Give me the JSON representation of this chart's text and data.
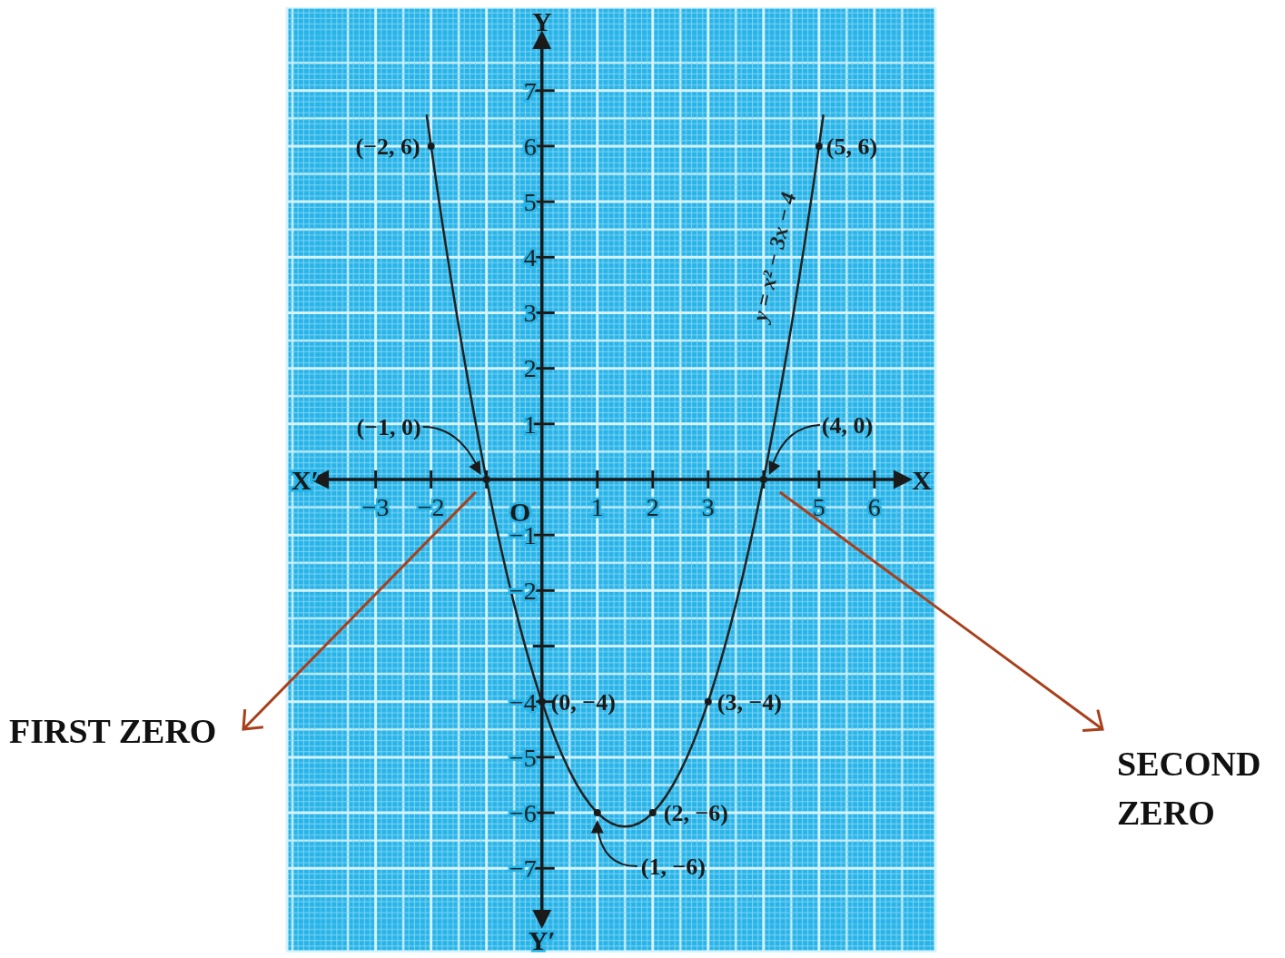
{
  "chart_data": {
    "type": "line",
    "xlabel": "X",
    "ylabel": "Y",
    "xlim": [
      -4.6,
      7.1
    ],
    "ylim": [
      -8.5,
      8.5
    ],
    "xticks": [
      -3,
      -2,
      {
        "value": -1,
        "label": null
      },
      1,
      2,
      3,
      {
        "value": 4,
        "label": null
      },
      5,
      6
    ],
    "yticks": [
      -7,
      -6,
      -5,
      -4,
      {
        "value": -3,
        "label": null
      },
      -2,
      -1,
      1,
      2,
      3,
      4,
      5,
      6,
      7
    ],
    "grid": true,
    "series": [
      {
        "name": "y = x² − 3x − 4",
        "color": "#222222",
        "marker": "none",
        "x": [
          -2.08,
          -2,
          -1.5,
          -1,
          -0.5,
          0,
          0.5,
          1,
          1.5,
          2,
          2.5,
          3,
          3.5,
          4,
          4.5,
          5,
          5.08
        ],
        "values": [
          6.57,
          6,
          2.75,
          0,
          -2.25,
          -4,
          -5.25,
          -6,
          -6.25,
          -6,
          -5.25,
          -4,
          -2.25,
          0,
          2.75,
          6,
          6.57
        ]
      },
      {
        "type": "scatter",
        "color": "#1a1a1a",
        "marker": "circle",
        "x": [
          -2,
          -1,
          0,
          1,
          2,
          3,
          4,
          5
        ],
        "values": [
          6,
          0,
          -4,
          -6,
          -6,
          -4,
          0,
          6
        ],
        "value_labels": [
          "(−2, 6)",
          "(−1, 0)",
          "(0, −4)",
          "(1, −6)",
          "(2, −6)",
          "(3, −4)",
          "(4, 0)",
          "(5, 6)"
        ]
      }
    ],
    "annotations": [
      "X′",
      "Y′",
      "FIRST ZERO",
      "SECOND ZERO",
      "O"
    ]
  }
}
